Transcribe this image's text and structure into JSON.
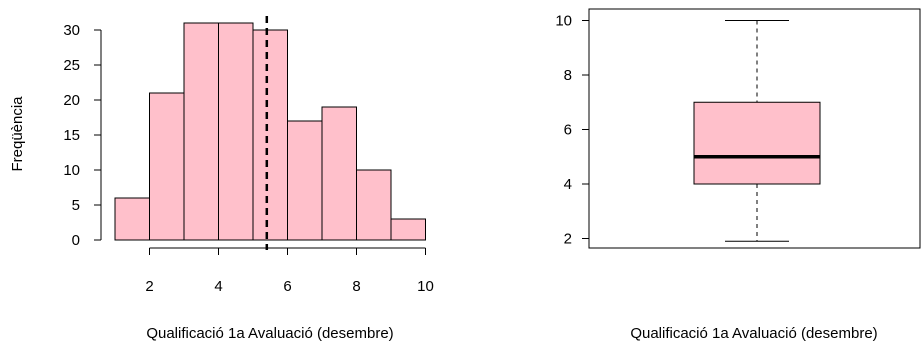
{
  "chart_data": [
    {
      "type": "bar",
      "subtype": "histogram",
      "bin_edges": [
        1,
        2,
        3,
        4,
        5,
        6,
        7,
        8,
        9,
        10
      ],
      "values": [
        6,
        21,
        31,
        31,
        30,
        17,
        19,
        10,
        3
      ],
      "xlabel": "Qualificació 1a Avaluació (desembre)",
      "ylabel": "Freqüència",
      "xlim": [
        1,
        10
      ],
      "ylim": [
        0,
        31
      ],
      "x_ticks": [
        2,
        4,
        6,
        8,
        10
      ],
      "y_ticks": [
        0,
        5,
        10,
        15,
        20,
        25,
        30
      ],
      "mean_line": 5.4,
      "bar_color": "#ffc0cb",
      "grid": false
    },
    {
      "type": "boxplot",
      "stats": {
        "min": 1.9,
        "q1": 4,
        "median": 5,
        "q3": 7,
        "max": 10
      },
      "xlabel": "Qualificació 1a Avaluació (desembre)",
      "ylabel": "",
      "ylim": [
        1.6,
        10.3
      ],
      "y_ticks": [
        2,
        4,
        6,
        8,
        10
      ],
      "box_color": "#ffc0cb",
      "grid": false
    }
  ]
}
